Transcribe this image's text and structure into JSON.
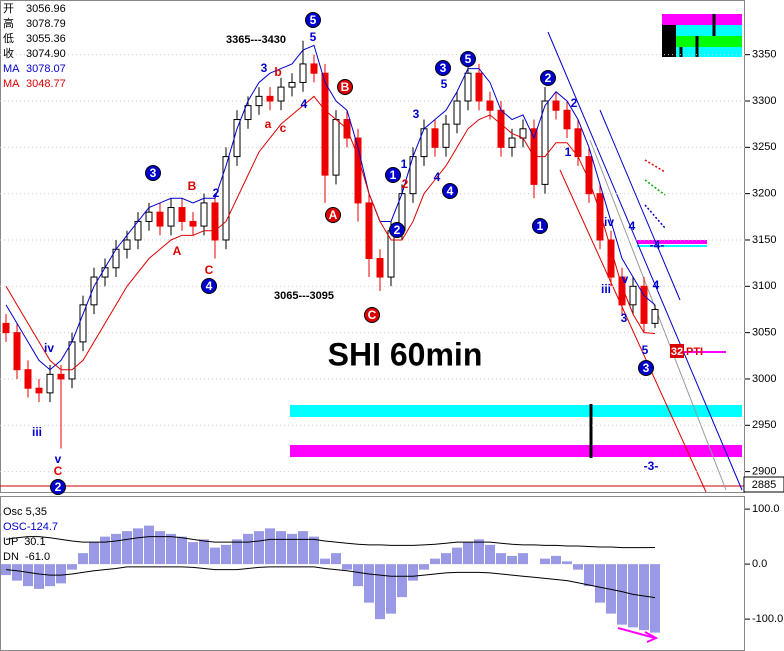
{
  "chart_data": {
    "type": "candlestick",
    "title": "SHI 60min",
    "info": [
      {
        "label": "开",
        "value": "3056.96"
      },
      {
        "label": "高",
        "value": "3078.79"
      },
      {
        "label": "低",
        "value": "3055.36"
      },
      {
        "label": "收",
        "value": "3074.90"
      },
      {
        "label": "MA",
        "value": "3078.07"
      },
      {
        "label": "MA",
        "value": "3048.77"
      }
    ],
    "ranges": [
      "3365---3430",
      "3065---3095"
    ],
    "last_price": 2885,
    "candles": [
      [
        3060,
        3070,
        3040,
        3050
      ],
      [
        3050,
        3060,
        3000,
        3010
      ],
      [
        3010,
        3020,
        2980,
        2990
      ],
      [
        2990,
        3000,
        2975,
        2985
      ],
      [
        2985,
        3015,
        2975,
        3005
      ],
      [
        3005,
        3015,
        2925,
        3000
      ],
      [
        3000,
        3050,
        2990,
        3040
      ],
      [
        3040,
        3090,
        3030,
        3080
      ],
      [
        3080,
        3120,
        3070,
        3110
      ],
      [
        3110,
        3130,
        3100,
        3120
      ],
      [
        3120,
        3150,
        3110,
        3140
      ],
      [
        3140,
        3160,
        3130,
        3150
      ],
      [
        3150,
        3180,
        3140,
        3170
      ],
      [
        3170,
        3190,
        3160,
        3180
      ],
      [
        3180,
        3190,
        3155,
        3165
      ],
      [
        3165,
        3195,
        3155,
        3185
      ],
      [
        3185,
        3195,
        3160,
        3170
      ],
      [
        3170,
        3180,
        3155,
        3165
      ],
      [
        3165,
        3200,
        3155,
        3190
      ],
      [
        3190,
        3200,
        3130,
        3150
      ],
      [
        3150,
        3250,
        3140,
        3240
      ],
      [
        3240,
        3290,
        3230,
        3280
      ],
      [
        3280,
        3305,
        3270,
        3295
      ],
      [
        3295,
        3315,
        3285,
        3305
      ],
      [
        3305,
        3315,
        3290,
        3300
      ],
      [
        3300,
        3325,
        3290,
        3315
      ],
      [
        3315,
        3330,
        3305,
        3320
      ],
      [
        3320,
        3365,
        3310,
        3340
      ],
      [
        3340,
        3350,
        3320,
        3330
      ],
      [
        3330,
        3340,
        3190,
        3220
      ],
      [
        3220,
        3290,
        3210,
        3280
      ],
      [
        3280,
        3290,
        3250,
        3260
      ],
      [
        3260,
        3270,
        3170,
        3190
      ],
      [
        3190,
        3200,
        3110,
        3130
      ],
      [
        3130,
        3140,
        3095,
        3110
      ],
      [
        3110,
        3170,
        3100,
        3160
      ],
      [
        3160,
        3210,
        3150,
        3200
      ],
      [
        3200,
        3250,
        3190,
        3240
      ],
      [
        3240,
        3280,
        3230,
        3270
      ],
      [
        3270,
        3280,
        3240,
        3250
      ],
      [
        3250,
        3285,
        3240,
        3275
      ],
      [
        3275,
        3310,
        3265,
        3300
      ],
      [
        3300,
        3340,
        3290,
        3330
      ],
      [
        3330,
        3340,
        3290,
        3300
      ],
      [
        3300,
        3310,
        3280,
        3290
      ],
      [
        3290,
        3300,
        3240,
        3250
      ],
      [
        3250,
        3270,
        3240,
        3260
      ],
      [
        3260,
        3280,
        3250,
        3270
      ],
      [
        3270,
        3280,
        3195,
        3210
      ],
      [
        3210,
        3315,
        3200,
        3300
      ],
      [
        3300,
        3310,
        3280,
        3290
      ],
      [
        3290,
        3300,
        3260,
        3270
      ],
      [
        3270,
        3280,
        3230,
        3240
      ],
      [
        3240,
        3250,
        3190,
        3200
      ],
      [
        3200,
        3210,
        3140,
        3150
      ],
      [
        3150,
        3160,
        3100,
        3110
      ],
      [
        3110,
        3120,
        3070,
        3080
      ],
      [
        3080,
        3110,
        3070,
        3100
      ],
      [
        3100,
        3110,
        3050,
        3060
      ],
      [
        3060,
        3080,
        3055,
        3075
      ]
    ],
    "ma": [
      {
        "color": "#0000cc",
        "values": [
          3080,
          3060,
          3040,
          3020,
          3010,
          3020,
          3040,
          3070,
          3100,
          3120,
          3140,
          3155,
          3170,
          3185,
          3190,
          3195,
          3195,
          3190,
          3195,
          3195,
          3230,
          3270,
          3300,
          3320,
          3330,
          3335,
          3340,
          3355,
          3360,
          3320,
          3300,
          3290,
          3250,
          3200,
          3170,
          3170,
          3200,
          3240,
          3270,
          3280,
          3290,
          3310,
          3335,
          3335,
          3320,
          3290,
          3280,
          3285,
          3260,
          3295,
          3310,
          3300,
          3280,
          3250,
          3210,
          3170,
          3130,
          3110,
          3090,
          3080
        ]
      },
      {
        "color": "#dd0000",
        "values": [
          3100,
          3080,
          3060,
          3040,
          3020,
          3010,
          3010,
          3020,
          3040,
          3060,
          3080,
          3100,
          3115,
          3130,
          3140,
          3150,
          3155,
          3155,
          3160,
          3160,
          3170,
          3195,
          3220,
          3245,
          3260,
          3275,
          3285,
          3295,
          3305,
          3290,
          3280,
          3270,
          3240,
          3200,
          3170,
          3150,
          3150,
          3170,
          3200,
          3215,
          3230,
          3250,
          3270,
          3280,
          3285,
          3275,
          3265,
          3260,
          3240,
          3240,
          3255,
          3255,
          3240,
          3215,
          3180,
          3140,
          3100,
          3070,
          3050,
          3049
        ]
      }
    ],
    "up_color": "#000000",
    "down_color": "#ee0000",
    "ylim": [
      2878,
      3409
    ],
    "yticks": [
      3350,
      3300,
      3250,
      3200,
      3150,
      3100,
      3050,
      3000,
      2950,
      2900
    ],
    "annotations": [
      "5",
      "3",
      "4",
      "2",
      "5",
      "3",
      "2",
      "1",
      "2",
      "4",
      "1",
      "3",
      "B",
      "A",
      "C",
      "5",
      "3",
      "b",
      "4",
      "a",
      "c",
      "B",
      "A",
      "C",
      "2",
      "iv",
      "iii",
      "v",
      "C",
      "3",
      "5",
      "4",
      "1",
      "2",
      "2",
      "1",
      "iv",
      "iii",
      "v",
      "3",
      "4",
      "4",
      "5",
      "-4-",
      "-3-"
    ],
    "pti": [
      "32",
      "PTI"
    ],
    "oscillator": {
      "title": "Osc 5,35",
      "readings": [
        "OSC-124.7",
        "UP  30.1",
        "DN  -61.0"
      ],
      "values": [
        -20,
        -30,
        -40,
        -45,
        -40,
        -35,
        -10,
        20,
        40,
        50,
        55,
        60,
        65,
        70,
        60,
        55,
        50,
        40,
        45,
        30,
        35,
        45,
        55,
        60,
        65,
        60,
        55,
        60,
        50,
        10,
        20,
        -10,
        -40,
        -70,
        -100,
        -90,
        -60,
        -30,
        -10,
        10,
        20,
        30,
        40,
        45,
        35,
        20,
        15,
        20,
        0,
        10,
        15,
        5,
        -10,
        -40,
        -70,
        -90,
        -110,
        -115,
        -120,
        -124.7
      ],
      "up": [
        45,
        48,
        50,
        50,
        48,
        45,
        42,
        40,
        40,
        40,
        42,
        45,
        48,
        50,
        50,
        50,
        48,
        45,
        42,
        40,
        40,
        40,
        40,
        42,
        45,
        45,
        45,
        45,
        45,
        42,
        40,
        38,
        36,
        35,
        35,
        34,
        34,
        34,
        35,
        36,
        38,
        40,
        40,
        40,
        40,
        38,
        36,
        35,
        35,
        34,
        34,
        33,
        33,
        32,
        31,
        31,
        30,
        30,
        30,
        30.1
      ],
      "dn": [
        -10,
        -12,
        -15,
        -18,
        -20,
        -20,
        -18,
        -15,
        -12,
        -10,
        -8,
        -5,
        -5,
        -5,
        -5,
        -5,
        -5,
        -6,
        -8,
        -10,
        -10,
        -10,
        -8,
        -6,
        -5,
        -5,
        -5,
        -5,
        -5,
        -8,
        -10,
        -12,
        -15,
        -18,
        -20,
        -22,
        -22,
        -22,
        -20,
        -18,
        -16,
        -15,
        -15,
        -15,
        -16,
        -18,
        -20,
        -22,
        -24,
        -26,
        -28,
        -30,
        -34,
        -38,
        -42,
        -46,
        -50,
        -55,
        -58,
        -61
      ],
      "color": "#3333cc",
      "ylim": [
        -158,
        122
      ],
      "yticks": [
        {
          "value": 100,
          "label": "100.0"
        },
        {
          "value": 0,
          "label": "0.0"
        },
        {
          "value": -100,
          "label": "-100.0"
        }
      ]
    }
  }
}
